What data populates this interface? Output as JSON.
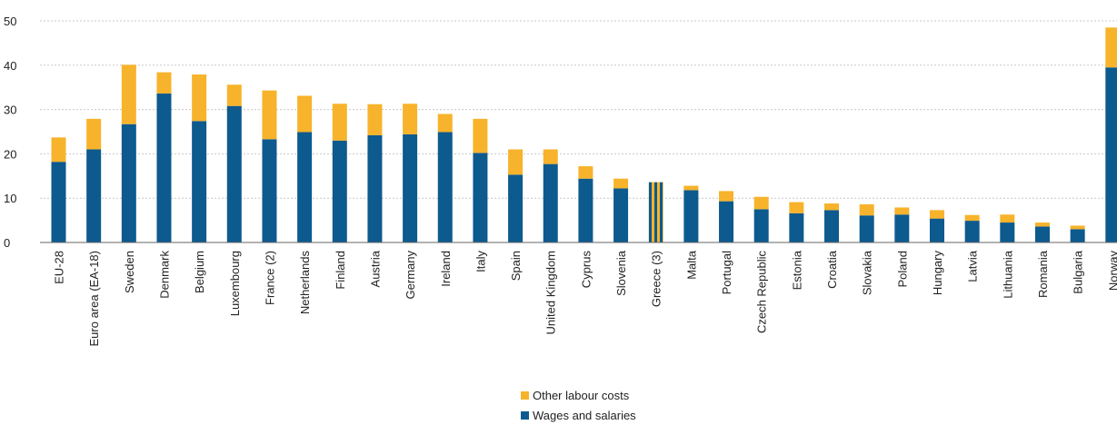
{
  "chart_data": {
    "type": "bar",
    "stacked": true,
    "title": "",
    "xlabel": "",
    "ylabel": "",
    "ylim": [
      0,
      50
    ],
    "yticks": [
      0,
      10,
      20,
      30,
      40,
      50
    ],
    "grid": true,
    "legend_position": "bottom-center",
    "categories": [
      "EU-28",
      "Euro area (EA-18)",
      "Sweden",
      "Denmark",
      "Belgium",
      "Luxembourg",
      "France (2)",
      "Netherlands",
      "Finland",
      "Austria",
      "Germany",
      "Ireland",
      "Italy",
      "Spain",
      "United Kingdom",
      "Cyprus",
      "Slovenia",
      "Greece (3)",
      "Malta",
      "Portugal",
      "Czech Republic",
      "Estonia",
      "Croatia",
      "Slovakia",
      "Poland",
      "Hungary",
      "Latvia",
      "Lithuania",
      "Romania",
      "Bulgaria",
      "Norway"
    ],
    "series": [
      {
        "name": "Wages and salaries",
        "color": "#0d5a8e",
        "values": [
          18.2,
          21.0,
          26.7,
          33.6,
          27.4,
          30.8,
          23.3,
          24.9,
          23.0,
          24.2,
          24.4,
          24.9,
          20.2,
          15.3,
          17.7,
          14.4,
          12.2,
          13.6,
          11.8,
          9.3,
          7.5,
          6.6,
          7.3,
          6.1,
          6.3,
          5.4,
          4.9,
          4.5,
          3.6,
          3.0,
          39.5
        ]
      },
      {
        "name": "Other labour costs",
        "color": "#f7b32b",
        "values": [
          5.5,
          6.9,
          13.4,
          4.8,
          10.5,
          4.8,
          11.0,
          8.2,
          8.3,
          7.0,
          6.9,
          4.1,
          7.7,
          5.7,
          3.3,
          2.8,
          2.2,
          0,
          1.0,
          2.3,
          2.8,
          2.5,
          1.5,
          2.5,
          1.6,
          1.9,
          1.3,
          1.8,
          0.9,
          0.8,
          9.0
        ]
      }
    ],
    "special_bars": [
      {
        "category": "Greece (3)",
        "value": 13.6,
        "colors": [
          "#0d5a8e",
          "#f7b32b"
        ]
      }
    ]
  }
}
